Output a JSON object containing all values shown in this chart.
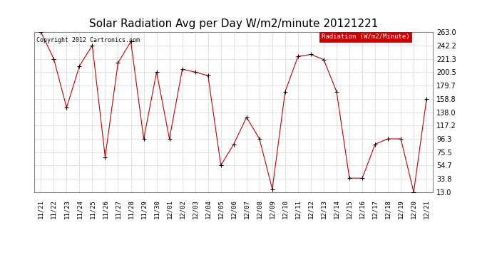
{
  "title": "Solar Radiation Avg per Day W/m2/minute 20121221",
  "copyright": "Copyright 2012 Cartronics.com",
  "legend_label": "Radiation (W/m2/Minute)",
  "legend_bg": "#cc0000",
  "legend_text_color": "#ffffff",
  "line_color": "#cc0000",
  "marker_color": "#000000",
  "background_color": "#ffffff",
  "grid_color": "#c8c8c8",
  "labels": [
    "11/21",
    "11/22",
    "11/23",
    "11/24",
    "11/25",
    "11/26",
    "11/27",
    "11/28",
    "11/29",
    "11/30",
    "12/01",
    "12/02",
    "12/03",
    "12/04",
    "12/05",
    "12/06",
    "12/07",
    "12/08",
    "12/09",
    "12/10",
    "12/11",
    "12/12",
    "12/13",
    "12/14",
    "12/15",
    "12/16",
    "12/17",
    "12/18",
    "12/19",
    "12/20",
    "12/21"
  ],
  "values": [
    263.0,
    221.3,
    145.0,
    210.0,
    242.2,
    68.0,
    215.0,
    248.0,
    96.3,
    200.5,
    96.3,
    205.0,
    200.5,
    195.0,
    55.0,
    88.0,
    130.0,
    96.3,
    18.0,
    170.0,
    225.0,
    228.0,
    220.0,
    170.0,
    35.0,
    35.0,
    88.0,
    96.3,
    96.3,
    13.0,
    158.8
  ],
  "yticks": [
    13.0,
    33.8,
    54.7,
    75.5,
    96.3,
    117.2,
    138.0,
    158.8,
    179.7,
    200.5,
    221.3,
    242.2,
    263.0
  ],
  "ylim": [
    13.0,
    263.0
  ],
  "title_fontsize": 11,
  "tick_fontsize": 7,
  "label_fontsize": 6.5,
  "copyright_fontsize": 6,
  "legend_fontsize": 6.5
}
